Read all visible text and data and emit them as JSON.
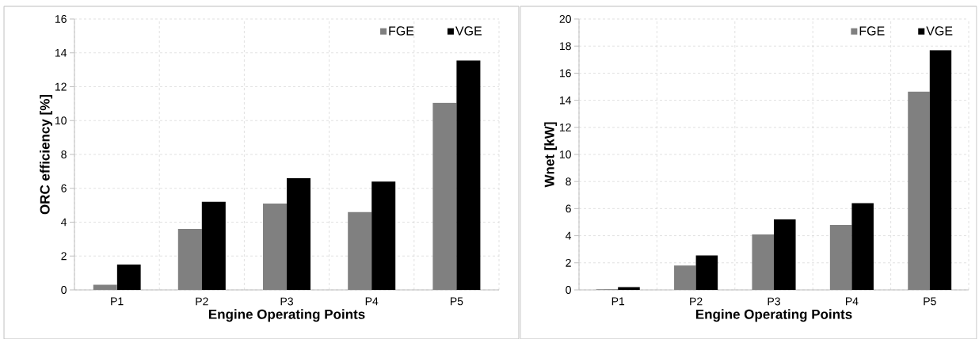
{
  "chart_data": [
    {
      "type": "bar",
      "xlabel": "Engine Operating Points",
      "ylabel": "ORC efficiency [%]",
      "categories": [
        "P1",
        "P2",
        "P3",
        "P4",
        "P5"
      ],
      "series": [
        {
          "name": "FGE",
          "color": "#808080",
          "values": [
            0.3,
            3.6,
            5.1,
            4.6,
            11.05
          ]
        },
        {
          "name": "VGE",
          "color": "#000000",
          "values": [
            1.5,
            5.2,
            6.6,
            6.4,
            13.55
          ]
        }
      ],
      "ylim": [
        0,
        16
      ],
      "yticks": [
        0,
        2,
        4,
        6,
        8,
        10,
        12,
        14,
        16
      ],
      "grid": true,
      "legend": "top right"
    },
    {
      "type": "bar",
      "xlabel": "Engine Operating Points",
      "ylabel": "Wnet [kW]",
      "categories": [
        "P1",
        "P2",
        "P3",
        "P4",
        "P5"
      ],
      "series": [
        {
          "name": "FGE",
          "color": "#808080",
          "values": [
            0.05,
            1.8,
            4.1,
            4.8,
            14.65
          ]
        },
        {
          "name": "VGE",
          "color": "#000000",
          "values": [
            0.2,
            2.55,
            5.2,
            6.4,
            17.7
          ]
        }
      ],
      "ylim": [
        0,
        20
      ],
      "yticks": [
        0,
        2,
        4,
        6,
        8,
        10,
        12,
        14,
        16,
        18,
        20
      ],
      "grid": true,
      "legend": "top right"
    }
  ]
}
